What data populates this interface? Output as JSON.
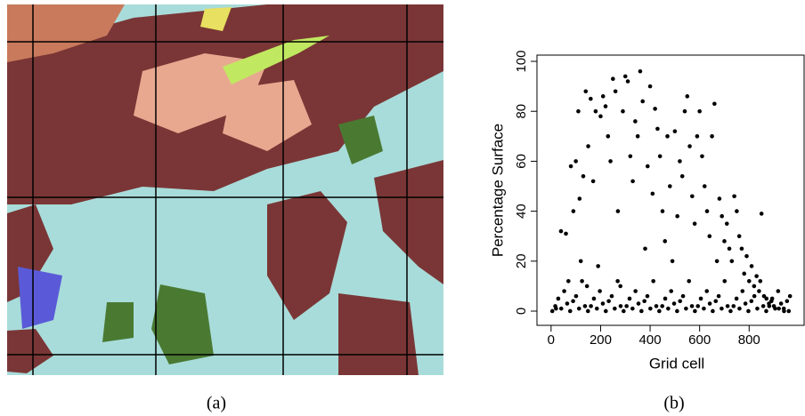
{
  "panel_a": {
    "caption": "(a)"
  },
  "panel_b": {
    "caption": "(b)"
  },
  "chart_data": {
    "type": "scatter",
    "x_label": "Grid cell",
    "y_label": "Percentage Surface",
    "xlim": [
      -57,
      1022
    ],
    "ylim": [
      -5.7,
      102.5
    ],
    "xticks": [
      0,
      200,
      400,
      600,
      800
    ],
    "yticks": [
      0,
      20,
      40,
      60,
      80,
      100
    ],
    "color": "#000000",
    "x": [
      20,
      40,
      60,
      70,
      80,
      90,
      100,
      110,
      115,
      120,
      130,
      140,
      145,
      150,
      160,
      170,
      180,
      190,
      200,
      210,
      220,
      230,
      240,
      250,
      260,
      270,
      280,
      290,
      300,
      310,
      320,
      330,
      340,
      350,
      360,
      370,
      380,
      390,
      400,
      410,
      420,
      430,
      440,
      450,
      460,
      470,
      480,
      490,
      500,
      510,
      520,
      530,
      540,
      550,
      560,
      570,
      580,
      590,
      600,
      610,
      620,
      630,
      640,
      650,
      660,
      670,
      680,
      690,
      700,
      710,
      720,
      730,
      740,
      750,
      760,
      770,
      780,
      790,
      800,
      810,
      820,
      830,
      840,
      850,
      860,
      870,
      880,
      890,
      900,
      920,
      940,
      960,
      5,
      17,
      29,
      41,
      53,
      65,
      77,
      89,
      101,
      113,
      125,
      137,
      149,
      161,
      173,
      185,
      197,
      209,
      221,
      233,
      245,
      257,
      269,
      281,
      293,
      305,
      317,
      329,
      341,
      353,
      365,
      377,
      389,
      401,
      413,
      425,
      437,
      449,
      461,
      473,
      485,
      497,
      509,
      521,
      533,
      545,
      557,
      569,
      581,
      593,
      605,
      617,
      629,
      641,
      653,
      665,
      677,
      689,
      701,
      713,
      725,
      737,
      749,
      761,
      773,
      785,
      797,
      809,
      821,
      833,
      845,
      857,
      869,
      881,
      893,
      905,
      917,
      929,
      941,
      953,
      965
    ],
    "y": [
      1,
      32,
      31,
      12,
      58,
      40,
      60,
      80,
      45,
      20,
      54,
      88,
      10,
      66,
      85,
      52,
      80,
      18,
      78,
      86,
      82,
      70,
      60,
      93,
      88,
      40,
      10,
      80,
      94,
      92,
      62,
      52,
      76,
      70,
      96,
      84,
      25,
      58,
      90,
      47,
      81,
      73,
      62,
      40,
      28,
      70,
      50,
      20,
      72,
      38,
      60,
      54,
      80,
      86,
      66,
      46,
      35,
      70,
      80,
      62,
      50,
      40,
      30,
      70,
      83,
      20,
      45,
      38,
      28,
      35,
      25,
      20,
      46,
      40,
      30,
      25,
      15,
      22,
      12,
      18,
      10,
      14,
      8,
      39,
      6,
      5,
      3,
      4,
      2,
      1,
      1,
      0,
      0,
      2,
      5,
      1,
      8,
      3,
      0,
      4,
      6,
      1,
      12,
      2,
      0,
      2,
      5,
      1,
      8,
      3,
      0,
      4,
      6,
      1,
      12,
      2,
      0,
      2,
      5,
      1,
      8,
      3,
      0,
      4,
      6,
      1,
      12,
      2,
      0,
      2,
      5,
      1,
      8,
      3,
      0,
      4,
      6,
      1,
      12,
      2,
      0,
      2,
      5,
      1,
      8,
      3,
      0,
      4,
      6,
      1,
      12,
      2,
      0,
      2,
      5,
      1,
      8,
      3,
      0,
      4,
      6,
      1,
      12,
      2,
      0,
      2,
      5,
      1,
      8,
      3,
      0,
      4,
      6
    ]
  }
}
